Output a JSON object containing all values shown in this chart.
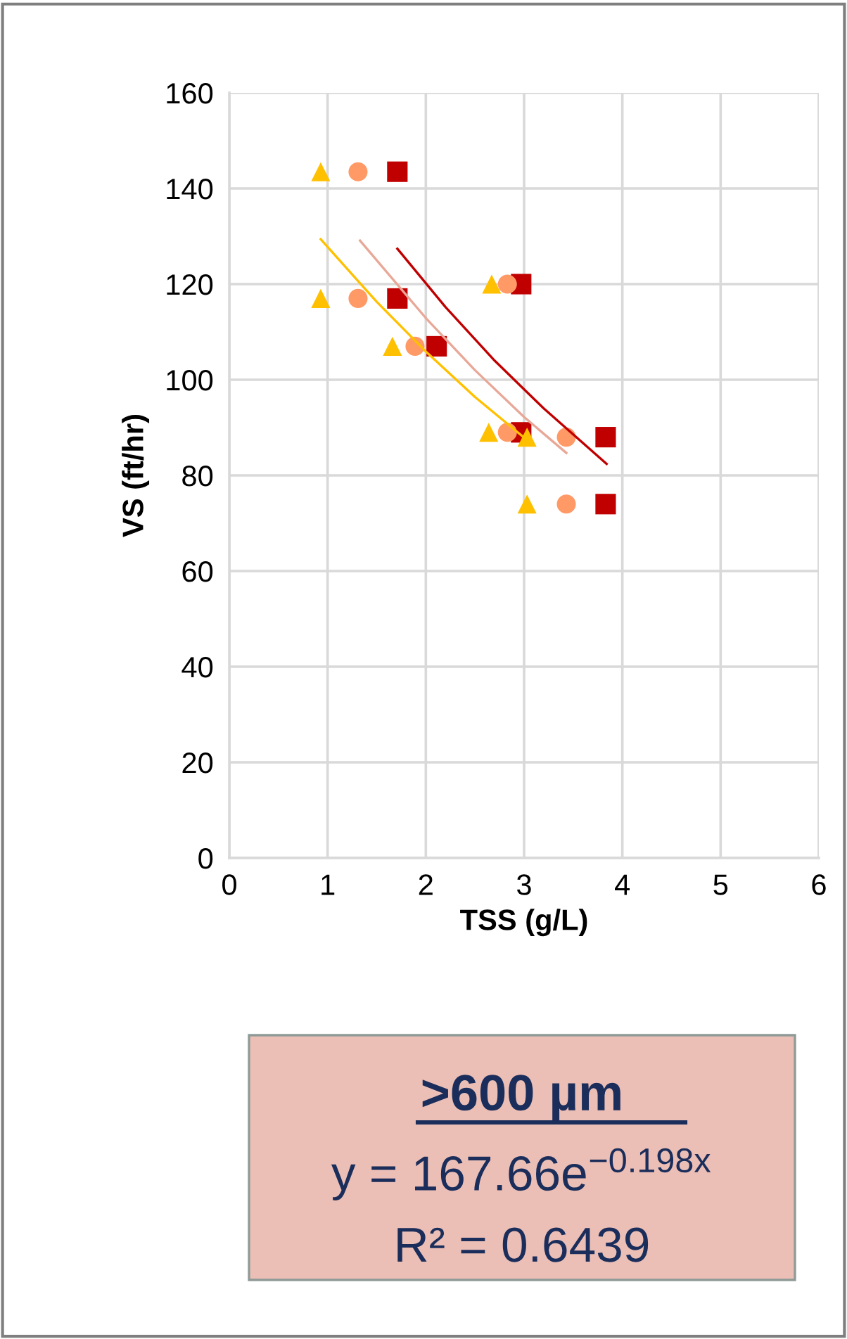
{
  "chart_data": {
    "type": "scatter",
    "xlabel": "TSS (g/L)",
    "ylabel": "VS (ft/hr)",
    "xlim": [
      0,
      6
    ],
    "xticks": [
      0,
      1,
      2,
      3,
      4,
      5,
      6
    ],
    "ylim": [
      0,
      160
    ],
    "yticks": [
      0,
      20,
      40,
      60,
      80,
      100,
      120,
      140,
      160
    ],
    "grid": true,
    "legend": false,
    "series": [
      {
        "marker": "triangle",
        "color": "#ffc000",
        "x": [
          0.93,
          0.93,
          1.66,
          2.67,
          2.64,
          3.03,
          3.03
        ],
        "values": [
          143.5,
          117,
          107,
          120,
          89,
          88,
          74
        ]
      },
      {
        "marker": "circle",
        "color": "#ff9966",
        "x": [
          1.31,
          1.31,
          1.89,
          2.83,
          2.83,
          3.43,
          3.43
        ],
        "values": [
          143.5,
          117,
          107,
          120,
          89,
          88,
          74
        ]
      },
      {
        "marker": "square",
        "color": "#c00000",
        "x": [
          1.71,
          1.71,
          2.11,
          2.97,
          2.97,
          3.83,
          3.83
        ],
        "values": [
          143.5,
          117,
          107,
          120,
          89,
          88,
          74
        ]
      },
      {
        "type": "line",
        "marker": "none",
        "color": "#ffc000",
        "x": [
          0.93,
          1.5,
          2.0,
          2.5,
          3.03
        ],
        "values": [
          129.4,
          116.3,
          105.9,
          96.4,
          87.4
        ]
      },
      {
        "type": "line",
        "marker": "none",
        "color": "#e8a898",
        "x": [
          1.33,
          2.0,
          2.5,
          3.0,
          3.43
        ],
        "values": [
          129.1,
          112.9,
          102.0,
          92.2,
          84.7
        ]
      },
      {
        "type": "line",
        "marker": "none",
        "color": "#c00000",
        "x": [
          1.71,
          2.2,
          2.7,
          3.2,
          3.84
        ],
        "values": [
          127.4,
          115.2,
          104.0,
          94.0,
          82.4
        ]
      }
    ],
    "annotations": [
      ">600 µm",
      "y = 167.66e$^{−0.198x}$",
      "R² = 0.6439"
    ]
  }
}
